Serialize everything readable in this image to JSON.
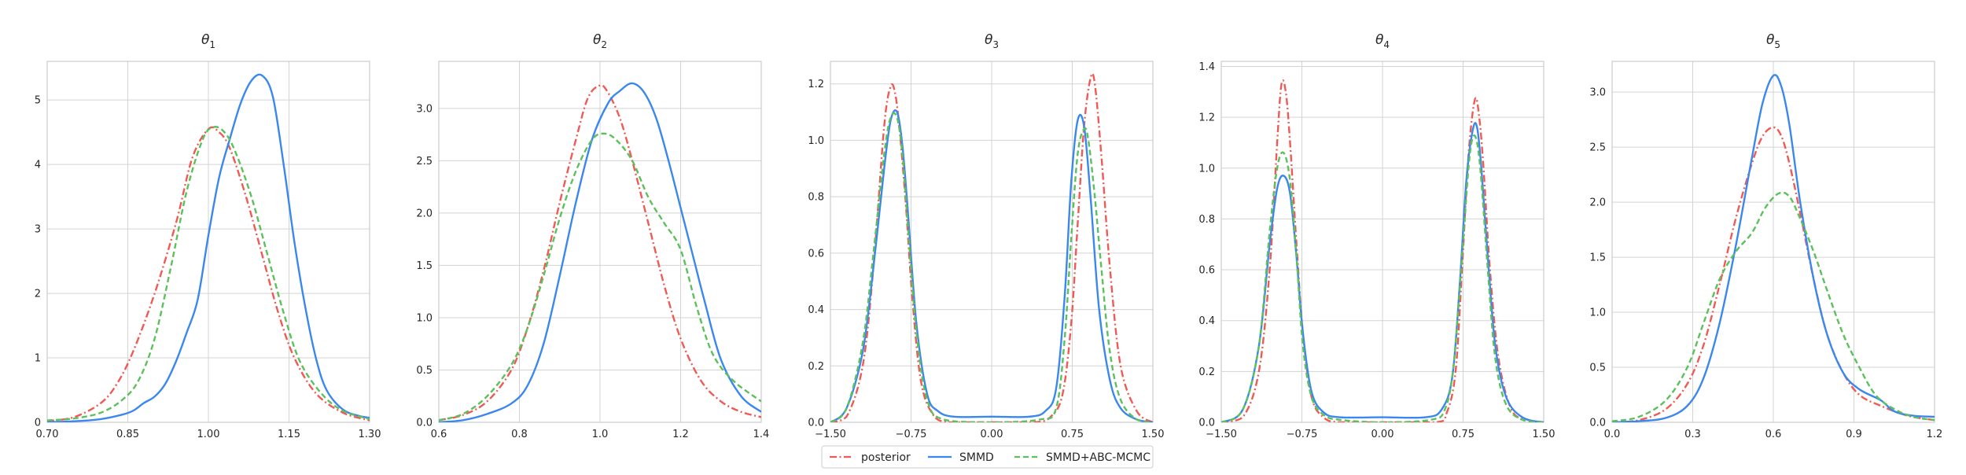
{
  "colors": {
    "posterior": "#f05a55",
    "smmd": "#3b87f0",
    "smmd_abc": "#5cc05c",
    "grid": "#d3d3d3",
    "axis": "#cccccc"
  },
  "chart_data": [
    {
      "type": "line",
      "title": "θ1",
      "title_main": "θ",
      "title_sub": "1",
      "xlim": [
        0.7,
        1.3
      ],
      "ylim": [
        0,
        5.6
      ],
      "xticks": [
        0.7,
        0.85,
        1.0,
        1.15,
        1.3
      ],
      "xtick_labels": [
        "0.70",
        "0.85",
        "1.00",
        "1.15",
        "1.30"
      ],
      "yticks": [
        0,
        1,
        2,
        3,
        4,
        5
      ],
      "ytick_labels": [
        "0",
        "1",
        "2",
        "3",
        "4",
        "5"
      ],
      "grid": true,
      "series": [
        {
          "name": "posterior",
          "style": "dashdot",
          "x": [
            0.7,
            0.75,
            0.8,
            0.83,
            0.86,
            0.9,
            0.94,
            0.97,
            1.0,
            1.02,
            1.04,
            1.07,
            1.1,
            1.13,
            1.16,
            1.2,
            1.25,
            1.3
          ],
          "y": [
            0.02,
            0.08,
            0.3,
            0.6,
            1.1,
            2.0,
            3.1,
            4.1,
            4.55,
            4.5,
            4.25,
            3.5,
            2.6,
            1.7,
            1.0,
            0.45,
            0.15,
            0.03
          ]
        },
        {
          "name": "SMMD",
          "style": "solid",
          "x": [
            0.7,
            0.76,
            0.8,
            0.84,
            0.86,
            0.88,
            0.9,
            0.92,
            0.94,
            0.96,
            0.98,
            1.0,
            1.02,
            1.04,
            1.06,
            1.08,
            1.1,
            1.12,
            1.14,
            1.16,
            1.18,
            1.2,
            1.22,
            1.25,
            1.28,
            1.3
          ],
          "y": [
            0.0,
            0.02,
            0.05,
            0.12,
            0.18,
            0.3,
            0.4,
            0.6,
            0.95,
            1.4,
            1.9,
            2.9,
            3.8,
            4.4,
            4.95,
            5.3,
            5.38,
            5.05,
            4.0,
            2.8,
            1.8,
            1.0,
            0.5,
            0.2,
            0.1,
            0.07
          ]
        },
        {
          "name": "SMMD+ABC-MCMC",
          "style": "dashed",
          "x": [
            0.7,
            0.75,
            0.8,
            0.84,
            0.87,
            0.9,
            0.93,
            0.96,
            0.99,
            1.01,
            1.03,
            1.05,
            1.08,
            1.11,
            1.14,
            1.17,
            1.21,
            1.25,
            1.3
          ],
          "y": [
            0.03,
            0.06,
            0.15,
            0.35,
            0.65,
            1.3,
            2.4,
            3.6,
            4.4,
            4.58,
            4.5,
            4.2,
            3.5,
            2.6,
            1.7,
            0.95,
            0.45,
            0.18,
            0.05
          ]
        }
      ]
    },
    {
      "type": "line",
      "title": "θ2",
      "title_main": "θ",
      "title_sub": "2",
      "xlim": [
        0.6,
        1.4
      ],
      "ylim": [
        0,
        3.45
      ],
      "xticks": [
        0.6,
        0.8,
        1.0,
        1.2,
        1.4
      ],
      "xtick_labels": [
        "0.6",
        "0.8",
        "1.0",
        "1.2",
        "1.4"
      ],
      "yticks": [
        0,
        0.5,
        1.0,
        1.5,
        2.0,
        2.5,
        3.0
      ],
      "ytick_labels": [
        "0.0",
        "0.5",
        "1.0",
        "1.5",
        "2.0",
        "2.5",
        "3.0"
      ],
      "grid": true,
      "series": [
        {
          "name": "posterior",
          "style": "dashdot",
          "x": [
            0.6,
            0.66,
            0.72,
            0.78,
            0.82,
            0.86,
            0.9,
            0.94,
            0.97,
            1.0,
            1.02,
            1.05,
            1.08,
            1.12,
            1.16,
            1.2,
            1.25,
            1.3,
            1.35,
            1.4
          ],
          "y": [
            0.02,
            0.07,
            0.2,
            0.5,
            0.9,
            1.45,
            2.1,
            2.7,
            3.1,
            3.22,
            3.15,
            2.9,
            2.5,
            1.9,
            1.3,
            0.8,
            0.4,
            0.2,
            0.1,
            0.05
          ]
        },
        {
          "name": "SMMD",
          "style": "solid",
          "x": [
            0.6,
            0.66,
            0.72,
            0.78,
            0.82,
            0.86,
            0.9,
            0.94,
            0.98,
            1.02,
            1.05,
            1.08,
            1.11,
            1.14,
            1.17,
            1.2,
            1.23,
            1.26,
            1.3,
            1.35,
            1.4
          ],
          "y": [
            0.0,
            0.02,
            0.08,
            0.18,
            0.35,
            0.75,
            1.4,
            2.1,
            2.7,
            3.05,
            3.17,
            3.24,
            3.15,
            2.9,
            2.5,
            2.05,
            1.6,
            1.15,
            0.6,
            0.25,
            0.1
          ]
        },
        {
          "name": "SMMD+ABC-MCMC",
          "style": "dashed",
          "x": [
            0.6,
            0.66,
            0.72,
            0.78,
            0.82,
            0.86,
            0.9,
            0.94,
            0.98,
            1.01,
            1.04,
            1.08,
            1.12,
            1.16,
            1.2,
            1.24,
            1.28,
            1.33,
            1.4
          ],
          "y": [
            0.02,
            0.08,
            0.25,
            0.55,
            0.9,
            1.4,
            1.95,
            2.4,
            2.7,
            2.76,
            2.7,
            2.5,
            2.15,
            1.9,
            1.65,
            1.1,
            0.65,
            0.4,
            0.2
          ]
        }
      ]
    },
    {
      "type": "line",
      "title": "θ3",
      "title_main": "θ",
      "title_sub": "3",
      "xlim": [
        -1.5,
        1.5
      ],
      "ylim": [
        0,
        1.28
      ],
      "xticks": [
        -1.5,
        -0.75,
        0.0,
        0.75,
        1.5
      ],
      "xtick_labels": [
        "−1.50",
        "−0.75",
        "0.00",
        "0.75",
        "1.50"
      ],
      "yticks": [
        0,
        0.2,
        0.4,
        0.6,
        0.8,
        1.0,
        1.2
      ],
      "ytick_labels": [
        "0.0",
        "0.2",
        "0.4",
        "0.6",
        "0.8",
        "1.0",
        "1.2"
      ],
      "grid": true,
      "series": [
        {
          "name": "posterior",
          "style": "dashdot",
          "x": [
            -1.5,
            -1.35,
            -1.2,
            -1.1,
            -1.0,
            -0.94,
            -0.9,
            -0.86,
            -0.8,
            -0.74,
            -0.66,
            -0.55,
            -0.4,
            0.0,
            0.4,
            0.55,
            0.66,
            0.74,
            0.8,
            0.86,
            0.92,
            0.96,
            1.02,
            1.1,
            1.2,
            1.35,
            1.5
          ],
          "y": [
            0.0,
            0.02,
            0.2,
            0.55,
            1.05,
            1.19,
            1.17,
            1.05,
            0.78,
            0.45,
            0.15,
            0.03,
            0.0,
            0.0,
            0.0,
            0.02,
            0.1,
            0.35,
            0.7,
            1.05,
            1.22,
            1.2,
            0.95,
            0.55,
            0.2,
            0.04,
            0.0
          ]
        },
        {
          "name": "SMMD",
          "style": "solid",
          "x": [
            -1.5,
            -1.35,
            -1.2,
            -1.1,
            -1.0,
            -0.94,
            -0.88,
            -0.83,
            -0.78,
            -0.7,
            -0.6,
            -0.5,
            -0.35,
            0.0,
            0.35,
            0.5,
            0.6,
            0.68,
            0.74,
            0.8,
            0.86,
            0.92,
            1.0,
            1.1,
            1.2,
            1.35,
            1.5
          ],
          "y": [
            0.0,
            0.05,
            0.25,
            0.55,
            0.9,
            1.07,
            1.1,
            0.98,
            0.75,
            0.35,
            0.1,
            0.04,
            0.02,
            0.02,
            0.02,
            0.04,
            0.12,
            0.45,
            0.85,
            1.07,
            1.05,
            0.8,
            0.4,
            0.15,
            0.05,
            0.01,
            0.0
          ]
        },
        {
          "name": "SMMD+ABC-MCMC",
          "style": "dashed",
          "x": [
            -1.5,
            -1.35,
            -1.2,
            -1.1,
            -1.0,
            -0.94,
            -0.88,
            -0.83,
            -0.78,
            -0.7,
            -0.6,
            -0.45,
            0.0,
            0.45,
            0.6,
            0.68,
            0.74,
            0.8,
            0.86,
            0.9,
            0.96,
            1.02,
            1.1,
            1.2,
            1.35,
            1.5
          ],
          "y": [
            0.0,
            0.05,
            0.28,
            0.6,
            0.95,
            1.08,
            1.08,
            0.95,
            0.7,
            0.32,
            0.08,
            0.01,
            0.0,
            0.01,
            0.05,
            0.3,
            0.65,
            0.95,
            1.04,
            1.0,
            0.8,
            0.55,
            0.25,
            0.08,
            0.01,
            0.0
          ]
        }
      ]
    },
    {
      "type": "line",
      "title": "θ4",
      "title_main": "θ",
      "title_sub": "4",
      "xlim": [
        -1.5,
        1.5
      ],
      "ylim": [
        0,
        1.42
      ],
      "xticks": [
        -1.5,
        -0.75,
        0.0,
        0.75,
        1.5
      ],
      "xtick_labels": [
        "−1.50",
        "−0.75",
        "0.00",
        "0.75",
        "1.50"
      ],
      "yticks": [
        0,
        0.2,
        0.4,
        0.6,
        0.8,
        1.0,
        1.2,
        1.4
      ],
      "ytick_labels": [
        "0.0",
        "0.2",
        "0.4",
        "0.6",
        "0.8",
        "1.0",
        "1.2",
        "1.4"
      ],
      "grid": true,
      "series": [
        {
          "name": "posterior",
          "style": "dashdot",
          "x": [
            -1.5,
            -1.3,
            -1.15,
            -1.05,
            -0.98,
            -0.94,
            -0.9,
            -0.86,
            -0.8,
            -0.74,
            -0.66,
            -0.55,
            -0.4,
            0.0,
            0.5,
            0.6,
            0.68,
            0.74,
            0.8,
            0.86,
            0.9,
            0.94,
            1.0,
            1.08,
            1.2,
            1.35,
            1.5
          ],
          "y": [
            0.0,
            0.02,
            0.2,
            0.6,
            1.1,
            1.33,
            1.3,
            1.1,
            0.7,
            0.35,
            0.1,
            0.02,
            0.0,
            0.0,
            0.0,
            0.04,
            0.2,
            0.6,
            1.05,
            1.27,
            1.2,
            1.0,
            0.6,
            0.25,
            0.05,
            0.01,
            0.0
          ]
        },
        {
          "name": "SMMD",
          "style": "solid",
          "x": [
            -1.5,
            -1.3,
            -1.15,
            -1.05,
            -0.98,
            -0.92,
            -0.86,
            -0.8,
            -0.74,
            -0.66,
            -0.55,
            -0.4,
            0.0,
            0.4,
            0.55,
            0.65,
            0.72,
            0.78,
            0.84,
            0.88,
            0.92,
            0.98,
            1.05,
            1.15,
            1.3,
            1.5
          ],
          "y": [
            0.0,
            0.05,
            0.3,
            0.7,
            0.92,
            0.97,
            0.9,
            0.65,
            0.35,
            0.12,
            0.04,
            0.02,
            0.02,
            0.02,
            0.05,
            0.18,
            0.55,
            0.95,
            1.15,
            1.16,
            1.0,
            0.65,
            0.3,
            0.1,
            0.02,
            0.0
          ]
        },
        {
          "name": "SMMD+ABC-MCMC",
          "style": "dashed",
          "x": [
            -1.5,
            -1.3,
            -1.15,
            -1.05,
            -0.98,
            -0.92,
            -0.86,
            -0.8,
            -0.74,
            -0.66,
            -0.55,
            -0.4,
            0.0,
            0.45,
            0.58,
            0.66,
            0.74,
            0.8,
            0.84,
            0.88,
            0.92,
            0.98,
            1.05,
            1.15,
            1.3,
            1.5
          ],
          "y": [
            0.0,
            0.05,
            0.3,
            0.75,
            1.0,
            1.06,
            0.95,
            0.65,
            0.3,
            0.1,
            0.03,
            0.01,
            0.0,
            0.01,
            0.05,
            0.22,
            0.65,
            1.0,
            1.12,
            1.1,
            0.95,
            0.6,
            0.25,
            0.07,
            0.01,
            0.0
          ]
        }
      ]
    },
    {
      "type": "line",
      "title": "θ5",
      "title_main": "θ",
      "title_sub": "5",
      "xlim": [
        0.0,
        1.2
      ],
      "ylim": [
        0,
        3.28
      ],
      "xticks": [
        0.0,
        0.3,
        0.6,
        0.9,
        1.2
      ],
      "xtick_labels": [
        "0.0",
        "0.3",
        "0.6",
        "0.9",
        "1.2"
      ],
      "yticks": [
        0,
        0.5,
        1.0,
        1.5,
        2.0,
        2.5,
        3.0
      ],
      "ytick_labels": [
        "0.0",
        "0.5",
        "1.0",
        "1.5",
        "2.0",
        "2.5",
        "3.0"
      ],
      "grid": true,
      "series": [
        {
          "name": "posterior",
          "style": "dashdot",
          "x": [
            0.0,
            0.1,
            0.2,
            0.28,
            0.34,
            0.4,
            0.46,
            0.52,
            0.56,
            0.6,
            0.63,
            0.66,
            0.7,
            0.75,
            0.8,
            0.86,
            0.92,
            1.0,
            1.1,
            1.2
          ],
          "y": [
            0.0,
            0.02,
            0.12,
            0.35,
            0.7,
            1.25,
            1.85,
            2.35,
            2.6,
            2.68,
            2.6,
            2.35,
            1.9,
            1.3,
            0.8,
            0.45,
            0.25,
            0.15,
            0.06,
            0.02
          ]
        },
        {
          "name": "SMMD",
          "style": "solid",
          "x": [
            0.0,
            0.1,
            0.2,
            0.28,
            0.34,
            0.4,
            0.46,
            0.52,
            0.56,
            0.6,
            0.63,
            0.66,
            0.7,
            0.75,
            0.8,
            0.86,
            0.92,
            1.0,
            1.05,
            1.12,
            1.2
          ],
          "y": [
            0.0,
            0.01,
            0.04,
            0.15,
            0.4,
            0.9,
            1.6,
            2.4,
            2.9,
            3.15,
            3.05,
            2.7,
            2.0,
            1.3,
            0.8,
            0.45,
            0.3,
            0.2,
            0.1,
            0.06,
            0.05
          ]
        },
        {
          "name": "SMMD+ABC-MCMC",
          "style": "dashed",
          "x": [
            0.0,
            0.1,
            0.2,
            0.28,
            0.34,
            0.4,
            0.46,
            0.52,
            0.57,
            0.62,
            0.66,
            0.7,
            0.75,
            0.8,
            0.86,
            0.92,
            0.98,
            1.05,
            1.12,
            1.2
          ],
          "y": [
            0.01,
            0.05,
            0.2,
            0.5,
            0.9,
            1.3,
            1.55,
            1.72,
            1.95,
            2.08,
            2.05,
            1.85,
            1.55,
            1.2,
            0.8,
            0.5,
            0.25,
            0.12,
            0.05,
            0.02
          ]
        }
      ]
    }
  ],
  "legend": {
    "placement": "bottom-center",
    "entries": [
      {
        "label": "posterior",
        "series": "posterior"
      },
      {
        "label": "SMMD",
        "series": "smmd"
      },
      {
        "label": "SMMD+ABC-MCMC",
        "series": "smmd_abc"
      }
    ]
  }
}
